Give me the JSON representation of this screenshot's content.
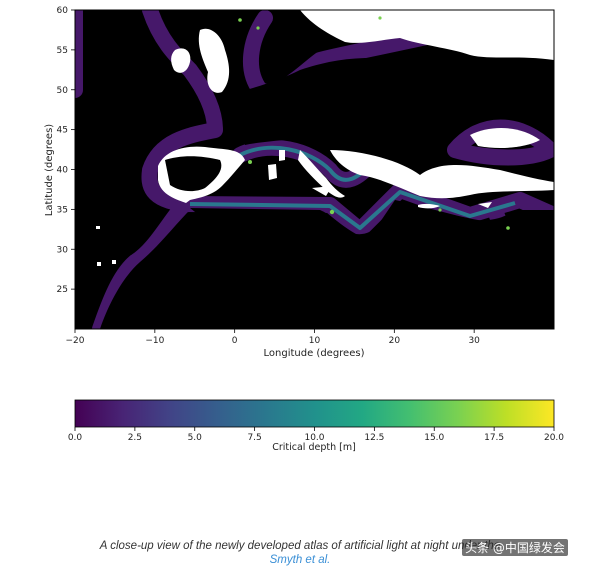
{
  "chart_data": {
    "type": "heatmap",
    "title": "",
    "xlabel": "Longitude (degrees)",
    "ylabel": "Latitude (degrees)",
    "xlim": [
      -20,
      40
    ],
    "ylim": [
      20,
      60
    ],
    "x_ticks": [
      -20,
      -10,
      0,
      10,
      20,
      30
    ],
    "x_tick_labels": [
      "−20",
      "−10",
      "0",
      "10",
      "20",
      "30"
    ],
    "y_ticks": [
      25,
      30,
      35,
      40,
      45,
      50,
      55,
      60
    ],
    "y_tick_labels": [
      "25",
      "30",
      "35",
      "40",
      "45",
      "50",
      "55",
      "60"
    ],
    "grid": false,
    "colormap": "viridis",
    "land_color": "#ffffff",
    "deep_ocean_color": "#000000",
    "colorbar": {
      "label": "Critical depth [m]",
      "range": [
        0,
        20
      ],
      "ticks": [
        0,
        2.5,
        5,
        7.5,
        10,
        12.5,
        15,
        17.5,
        20
      ],
      "tick_labels": [
        "0.0",
        "2.5",
        "5.0",
        "7.5",
        "10.0",
        "12.5",
        "15.0",
        "17.5",
        "20.0"
      ],
      "orientation": "horizontal"
    }
  },
  "caption": {
    "line1": "A close-up view of the newly developed atlas of artificial light at night under the",
    "line2": "Smyth et al."
  },
  "watermark": "头条 @中国绿发会"
}
